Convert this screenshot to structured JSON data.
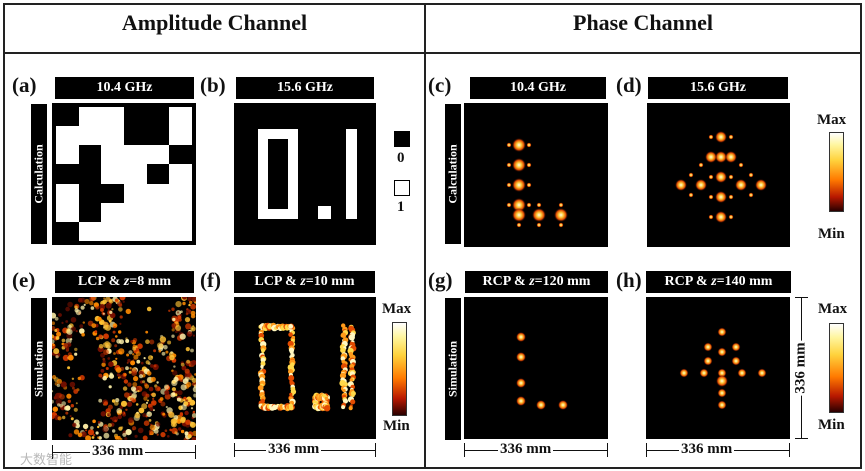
{
  "titles": {
    "amplitude": "Amplitude Channel",
    "phase": "Phase Channel"
  },
  "panels": {
    "a": {
      "label": "(a)",
      "header": "10.4 GHz"
    },
    "b": {
      "label": "(b)",
      "header": "15.6 GHz"
    },
    "c": {
      "label": "(c)",
      "header": "10.4 GHz"
    },
    "d": {
      "label": "(d)",
      "header": "15.6 GHz"
    },
    "e": {
      "label": "(e)",
      "header_pre": "LCP & ",
      "header_var": "z",
      "header_post": "=8 mm"
    },
    "f": {
      "label": "(f)",
      "header_pre": "LCP & ",
      "header_var": "z",
      "header_post": "=10 mm"
    },
    "g": {
      "label": "(g)",
      "header_pre": "RCP & ",
      "header_var": "z",
      "header_post": "=120 mm"
    },
    "h": {
      "label": "(h)",
      "header_pre": "RCP & ",
      "header_var": "z",
      "header_post": "=140 mm"
    }
  },
  "row_labels": {
    "calc_amp": "Calculation",
    "sim_amp": "Simulation",
    "calc_phase": "Calculation",
    "sim_phase": "Simulation"
  },
  "legend": {
    "zero": "0",
    "one": "1"
  },
  "colorbar": {
    "max": "Max",
    "min": "Min"
  },
  "dimensions": {
    "e_width": "336 mm",
    "f_width": "336 mm",
    "g_width": "336 mm",
    "h_width": "336 mm",
    "h_height": "336 mm"
  },
  "watermark": "大数智能",
  "bitmap_a": [
    [
      0,
      1,
      1,
      0,
      0,
      1
    ],
    [
      1,
      1,
      1,
      0,
      0,
      1
    ],
    [
      1,
      0,
      1,
      1,
      1,
      0
    ],
    [
      0,
      0,
      1,
      1,
      0,
      1
    ],
    [
      1,
      0,
      0,
      1,
      1,
      1
    ],
    [
      1,
      0,
      1,
      1,
      1,
      1
    ],
    [
      0,
      1,
      1,
      1,
      1,
      1
    ]
  ]
}
